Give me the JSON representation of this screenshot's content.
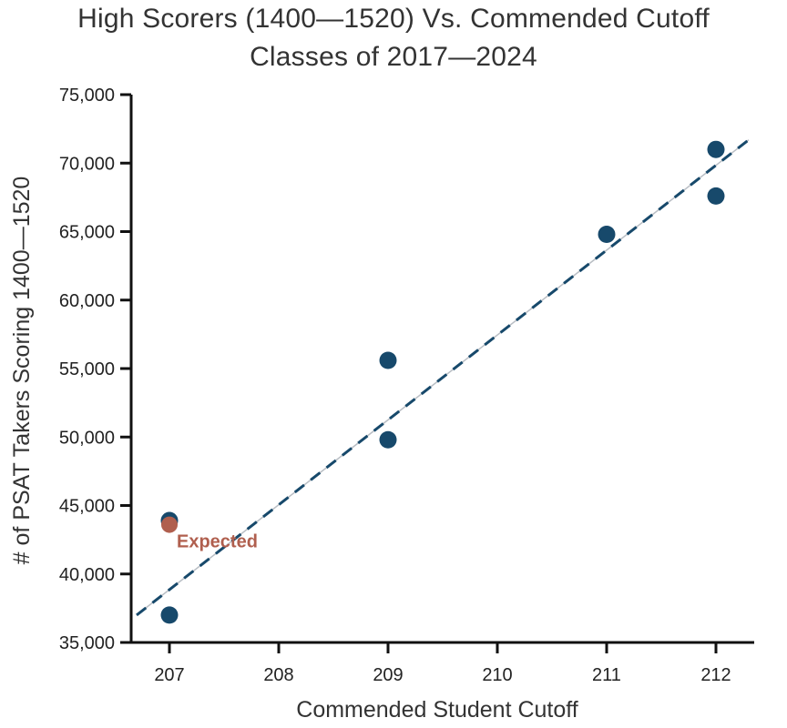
{
  "chart_data": {
    "type": "scatter",
    "title": "High Scorers (1400—1520) Vs. Commended Cutoff",
    "subtitle": "Classes of 2017—2024",
    "xlabel": "Commended Student Cutoff",
    "ylabel": "# of PSAT Takers Scoring 1400—1520",
    "xlim": [
      206.65,
      212.35
    ],
    "ylim": [
      35000,
      75000
    ],
    "x_ticks": [
      207,
      208,
      209,
      210,
      211,
      212
    ],
    "x_tick_labels": [
      "207",
      "208",
      "209",
      "210",
      "211",
      "212"
    ],
    "y_ticks": [
      35000,
      40000,
      45000,
      50000,
      55000,
      60000,
      65000,
      70000,
      75000
    ],
    "y_tick_labels": [
      "35,000",
      "40,000",
      "45,000",
      "50,000",
      "55,000",
      "60,000",
      "65,000",
      "70,000",
      "75,000"
    ],
    "grid": false,
    "series": [
      {
        "color": "#17496b",
        "points": [
          {
            "x": 207,
            "y": 43900
          },
          {
            "x": 207,
            "y": 37000
          },
          {
            "x": 209,
            "y": 55600
          },
          {
            "x": 209,
            "y": 49800
          },
          {
            "x": 211,
            "y": 64800
          },
          {
            "x": 212,
            "y": 71000
          },
          {
            "x": 212,
            "y": 67600
          }
        ]
      }
    ],
    "trendline": {
      "style": "dashed",
      "color": "#17496b",
      "x_start": 206.7,
      "y_start": 37000,
      "x_end": 212.3,
      "y_end": 71700
    },
    "expected_point": {
      "x": 207,
      "y": 43600,
      "label": "Expected",
      "color": "#b05f4e"
    }
  }
}
